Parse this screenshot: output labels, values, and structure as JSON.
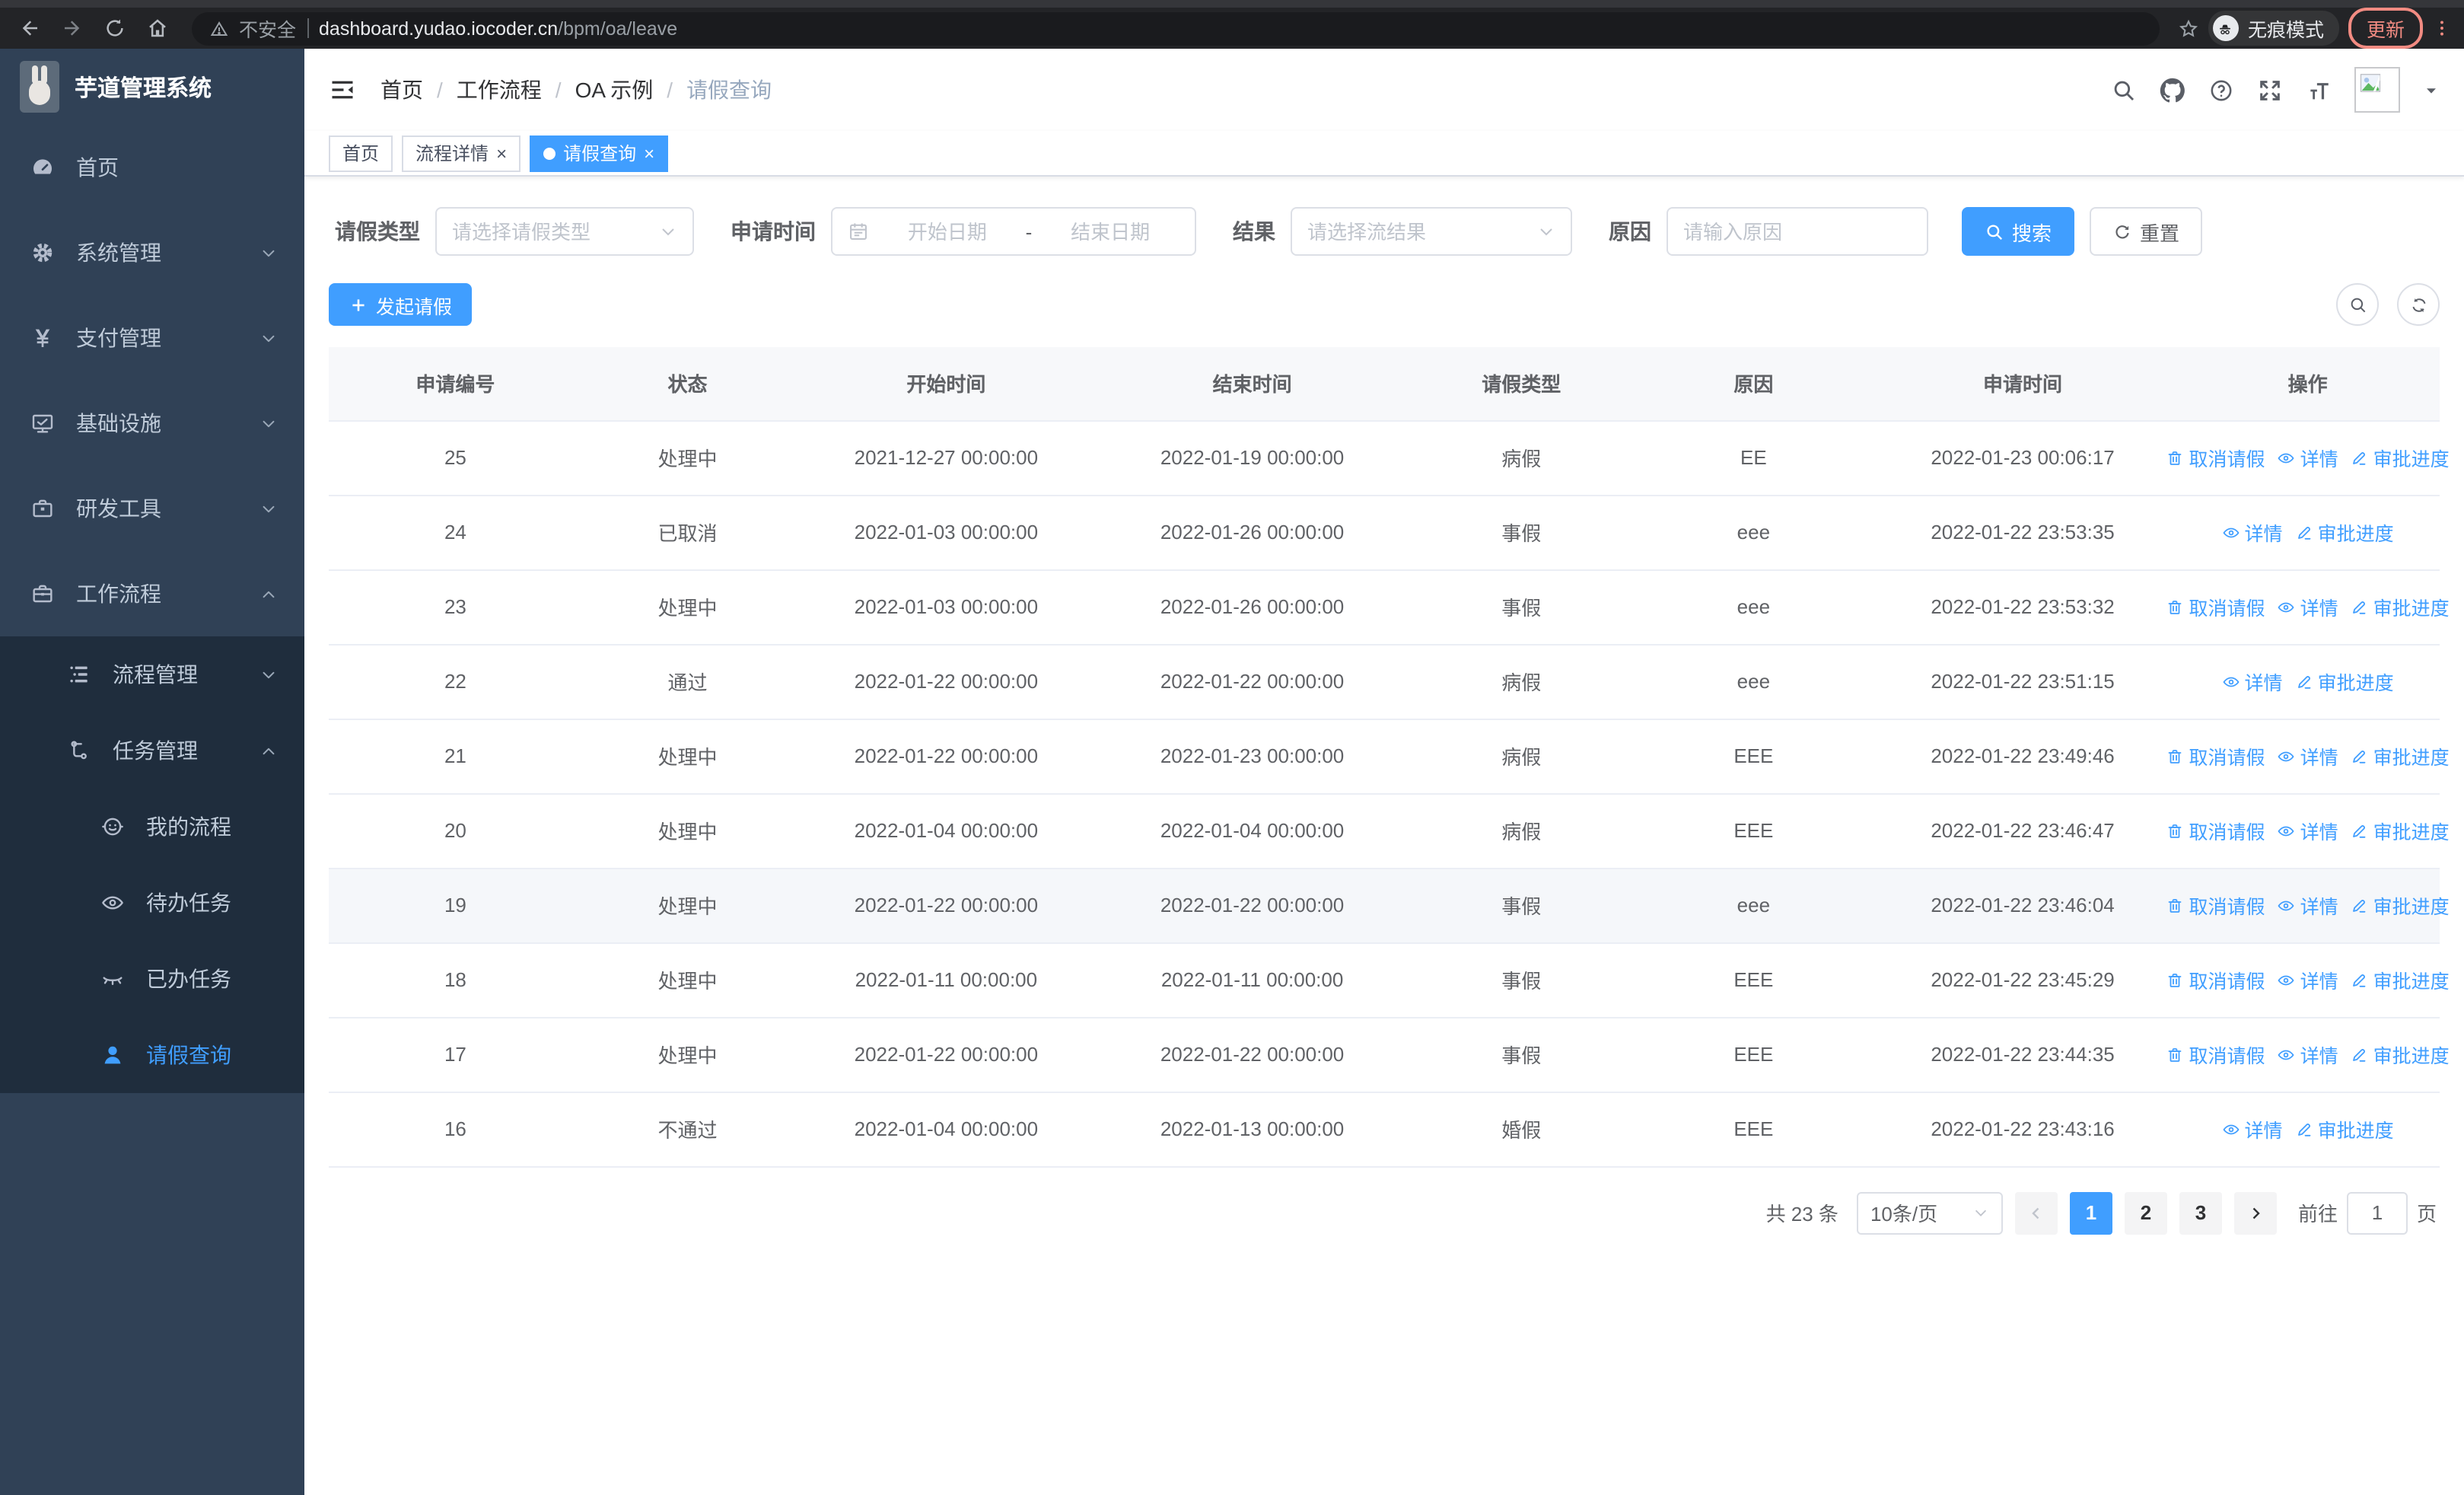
{
  "browser": {
    "security_text": "不安全",
    "url_host": "dashboard.yudao.iocoder.cn",
    "url_path": "/bpm/oa/leave",
    "incognito_label": "无痕模式",
    "update_label": "更新"
  },
  "sidebar": {
    "title": "芋道管理系统",
    "items": [
      {
        "key": "home",
        "icon": "dashboard-icon",
        "label": "首页",
        "level": 1
      },
      {
        "key": "system",
        "icon": "gear-icon",
        "label": "系统管理",
        "level": 1,
        "chevron": "down"
      },
      {
        "key": "payment",
        "icon": "yen-icon",
        "label": "支付管理",
        "level": 1,
        "chevron": "down"
      },
      {
        "key": "infra",
        "icon": "monitor-icon",
        "label": "基础设施",
        "level": 1,
        "chevron": "down"
      },
      {
        "key": "devtools",
        "icon": "toolbox-icon",
        "label": "研发工具",
        "level": 1,
        "chevron": "down"
      },
      {
        "key": "workflow",
        "icon": "briefcase-icon",
        "label": "工作流程",
        "level": 1,
        "chevron": "up"
      },
      {
        "key": "process-mgmt",
        "icon": "list-icon",
        "label": "流程管理",
        "level": 2,
        "sub": true,
        "chevron": "down"
      },
      {
        "key": "task-mgmt",
        "icon": "flow-icon",
        "label": "任务管理",
        "level": 2,
        "sub": true,
        "chevron": "up"
      },
      {
        "key": "my-process",
        "icon": "robot-icon",
        "label": "我的流程",
        "level": 3,
        "sub": true
      },
      {
        "key": "todo-task",
        "icon": "eye-icon",
        "label": "待办任务",
        "level": 3,
        "sub": true
      },
      {
        "key": "done-task",
        "icon": "eye-closed-icon",
        "label": "已办任务",
        "level": 3,
        "sub": true
      },
      {
        "key": "leave-query",
        "icon": "user-icon",
        "label": "请假查询",
        "level": 3,
        "sub": true,
        "active": true
      }
    ]
  },
  "breadcrumb": {
    "items": [
      "首页",
      "工作流程",
      "OA 示例",
      "请假查询"
    ]
  },
  "tabs": {
    "items": [
      {
        "label": "首页",
        "closable": false,
        "active": false
      },
      {
        "label": "流程详情",
        "closable": true,
        "active": false
      },
      {
        "label": "请假查询",
        "closable": true,
        "active": true
      }
    ]
  },
  "filters": {
    "leave_type": {
      "label": "请假类型",
      "placeholder": "请选择请假类型"
    },
    "apply_time": {
      "label": "申请时间",
      "start_placeholder": "开始日期",
      "separator": "-",
      "end_placeholder": "结束日期"
    },
    "result": {
      "label": "结果",
      "placeholder": "请选择流结果"
    },
    "reason": {
      "label": "原因",
      "placeholder": "请输入原因"
    },
    "search_label": "搜索",
    "reset_label": "重置"
  },
  "toolbar": {
    "create_label": "发起请假"
  },
  "table": {
    "columns": [
      "申请编号",
      "状态",
      "开始时间",
      "结束时间",
      "请假类型",
      "原因",
      "申请时间",
      "操作"
    ],
    "action_labels": {
      "cancel": "取消请假",
      "detail": "详情",
      "progress": "审批进度"
    },
    "rows": [
      {
        "id": "25",
        "status": "处理中",
        "start": "2021-12-27 00:00:00",
        "end": "2022-01-19 00:00:00",
        "type": "病假",
        "reason": "EE",
        "applied": "2022-01-23 00:06:17",
        "actions": [
          "cancel",
          "detail",
          "progress"
        ]
      },
      {
        "id": "24",
        "status": "已取消",
        "start": "2022-01-03 00:00:00",
        "end": "2022-01-26 00:00:00",
        "type": "事假",
        "reason": "eee",
        "applied": "2022-01-22 23:53:35",
        "actions": [
          "detail",
          "progress"
        ]
      },
      {
        "id": "23",
        "status": "处理中",
        "start": "2022-01-03 00:00:00",
        "end": "2022-01-26 00:00:00",
        "type": "事假",
        "reason": "eee",
        "applied": "2022-01-22 23:53:32",
        "actions": [
          "cancel",
          "detail",
          "progress"
        ]
      },
      {
        "id": "22",
        "status": "通过",
        "start": "2022-01-22 00:00:00",
        "end": "2022-01-22 00:00:00",
        "type": "病假",
        "reason": "eee",
        "applied": "2022-01-22 23:51:15",
        "actions": [
          "detail",
          "progress"
        ]
      },
      {
        "id": "21",
        "status": "处理中",
        "start": "2022-01-22 00:00:00",
        "end": "2022-01-23 00:00:00",
        "type": "病假",
        "reason": "EEE",
        "applied": "2022-01-22 23:49:46",
        "actions": [
          "cancel",
          "detail",
          "progress"
        ]
      },
      {
        "id": "20",
        "status": "处理中",
        "start": "2022-01-04 00:00:00",
        "end": "2022-01-04 00:00:00",
        "type": "病假",
        "reason": "EEE",
        "applied": "2022-01-22 23:46:47",
        "actions": [
          "cancel",
          "detail",
          "progress"
        ]
      },
      {
        "id": "19",
        "status": "处理中",
        "start": "2022-01-22 00:00:00",
        "end": "2022-01-22 00:00:00",
        "type": "事假",
        "reason": "eee",
        "applied": "2022-01-22 23:46:04",
        "actions": [
          "cancel",
          "detail",
          "progress"
        ],
        "highlighted": true
      },
      {
        "id": "18",
        "status": "处理中",
        "start": "2022-01-11 00:00:00",
        "end": "2022-01-11 00:00:00",
        "type": "事假",
        "reason": "EEE",
        "applied": "2022-01-22 23:45:29",
        "actions": [
          "cancel",
          "detail",
          "progress"
        ]
      },
      {
        "id": "17",
        "status": "处理中",
        "start": "2022-01-22 00:00:00",
        "end": "2022-01-22 00:00:00",
        "type": "事假",
        "reason": "EEE",
        "applied": "2022-01-22 23:44:35",
        "actions": [
          "cancel",
          "detail",
          "progress"
        ]
      },
      {
        "id": "16",
        "status": "不通过",
        "start": "2022-01-04 00:00:00",
        "end": "2022-01-13 00:00:00",
        "type": "婚假",
        "reason": "EEE",
        "applied": "2022-01-22 23:43:16",
        "actions": [
          "detail",
          "progress"
        ]
      }
    ]
  },
  "pagination": {
    "total_label": "共 23 条",
    "page_size": "10条/页",
    "pages": [
      "1",
      "2",
      "3"
    ],
    "active_page": "1",
    "goto_label": "前往",
    "goto_value": "1",
    "page_unit": "页"
  },
  "colors": {
    "accent": "#409eff",
    "sidebar_bg": "#304156",
    "submenu_bg": "#1f2d3d",
    "update_accent": "#f28b82"
  }
}
